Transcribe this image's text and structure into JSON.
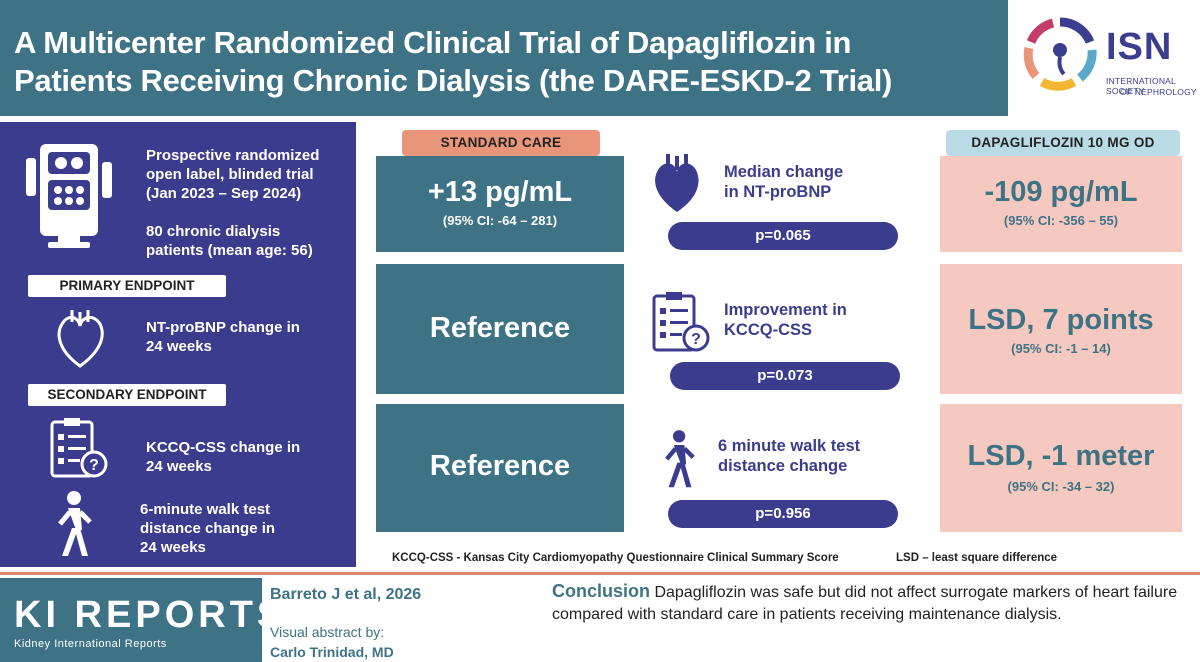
{
  "header": {
    "title_line1": "A Multicenter Randomized Clinical Trial of Dapagliflozin in",
    "title_line2": "Patients Receiving Chronic Dialysis (the DARE-ESKD-2 Trial)"
  },
  "logo": {
    "name": "ISN",
    "subtitle_line1": "INTERNATIONAL SOCIETY",
    "subtitle_line2": "OF NEPHROLOGY"
  },
  "left_panel": {
    "design_line1": "Prospective randomized",
    "design_line2": "open label, blinded trial",
    "design_line3": "(Jan 2023 – Sep 2024)",
    "patients_line1": "80 chronic dialysis",
    "patients_line2": "patients (mean age: 56)",
    "primary_label": "PRIMARY ENDPOINT",
    "primary_line1": "NT-proBNP change in",
    "primary_line2": "24 weeks",
    "secondary_label": "SECONDARY ENDPOINT",
    "secondary1_line1": "KCCQ-CSS change in",
    "secondary1_line2": "24 weeks",
    "secondary2_line1": "6-minute walk test",
    "secondary2_line2": "distance change in",
    "secondary2_line3": "24 weeks"
  },
  "columns": {
    "standard_label": "STANDARD CARE",
    "dapa_label": "DAPAGLIFLOZIN 10 MG OD"
  },
  "rows": [
    {
      "standard_value": "+13 pg/mL",
      "standard_ci": "(95% CI: -64 – 281)",
      "measure_line1": "Median change",
      "measure_line2": "in NT-proBNP",
      "p": "p=0.065",
      "dapa_value": "-109 pg/mL",
      "dapa_ci": "(95% CI: -356 – 55)"
    },
    {
      "standard_value": "Reference",
      "measure_line1": "Improvement in",
      "measure_line2": "KCCQ-CSS",
      "p": "p=0.073",
      "dapa_value": "LSD, 7 points",
      "dapa_ci": "(95% CI: -1 – 14)"
    },
    {
      "standard_value": "Reference",
      "measure_line1": "6 minute walk test",
      "measure_line2": "distance change",
      "p": "p=0.956",
      "dapa_value": "LSD, -1 meter",
      "dapa_ci": "(95% CI: -34 – 32)"
    }
  ],
  "footnotes": {
    "kccq": "KCCQ-CSS - Kansas City Cardiomyopathy Questionnaire Clinical Summary Score",
    "lsd": "LSD – least square difference"
  },
  "footer": {
    "journal": "KI REPORTS",
    "journal_sub": "Kidney International Reports",
    "citation": "Barreto J et al, 2026",
    "visual_by": "Visual abstract by:",
    "author": "Carlo Trinidad, MD",
    "conclusion_label": "Conclusion",
    "conclusion_text": "Dapagliflozin was safe but did not affect surrogate markers of heart failure compared with standard care in patients receiving maintenance dialysis."
  },
  "colors": {
    "teal": "#3e7386",
    "navy": "#3c3c8f",
    "pink": "#f5c9c0",
    "salmon": "#e8957a",
    "sky": "#b9dbe6"
  },
  "icons": [
    "dialysis-machine-icon",
    "heart-icon",
    "clipboard-question-icon",
    "walking-person-icon"
  ]
}
